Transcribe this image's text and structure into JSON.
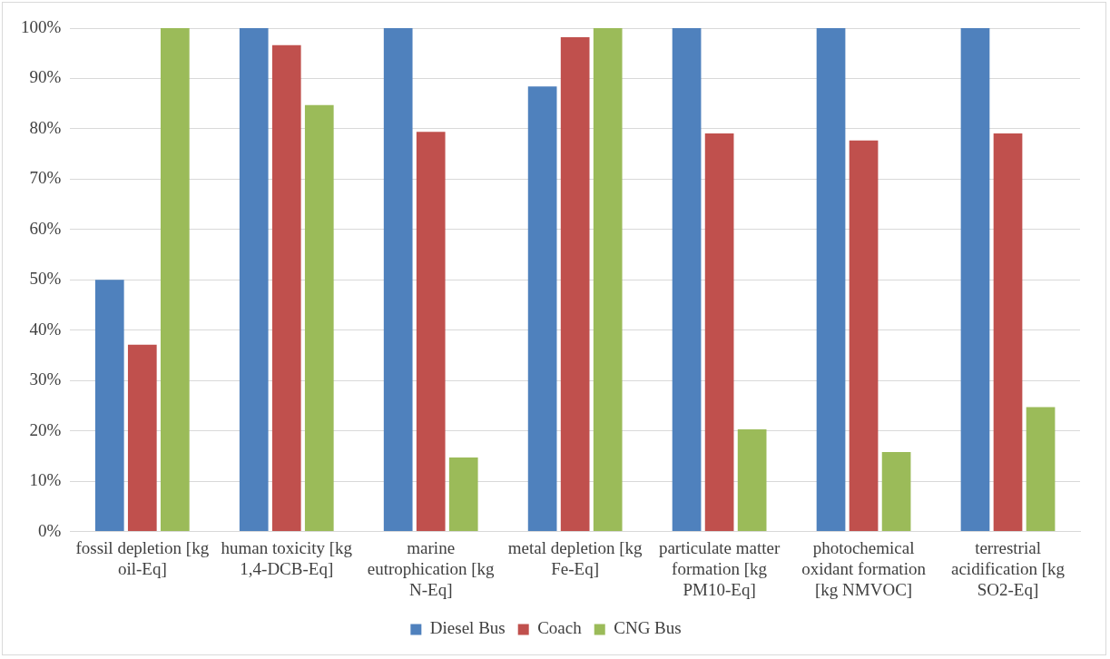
{
  "chart_data": {
    "type": "bar",
    "categories": [
      "fossil depletion [kg oil-Eq]",
      "human toxicity [kg 1,4-DCB-Eq]",
      "marine eutrophication [kg N-Eq]",
      "metal depletion [kg Fe-Eq]",
      "particulate matter formation [kg PM10-Eq]",
      "photochemical oxidant formation [kg NMVOC]",
      "terrestrial acidification [kg SO2-Eq]"
    ],
    "series": [
      {
        "name": "Diesel Bus",
        "color": "#4f81bd",
        "values": [
          50,
          100,
          100,
          88.4,
          100,
          100,
          100
        ]
      },
      {
        "name": "Coach",
        "color": "#c0504d",
        "values": [
          37.1,
          96.6,
          79.4,
          98.2,
          79.1,
          77.7,
          79.1
        ]
      },
      {
        "name": "CNG Bus",
        "color": "#9bbb59",
        "values": [
          100,
          84.7,
          14.7,
          100,
          20.3,
          15.8,
          24.7
        ]
      }
    ],
    "ylim": [
      0,
      100
    ],
    "yticks": [
      {
        "value": 0,
        "label": "0%"
      },
      {
        "value": 10,
        "label": "10%"
      },
      {
        "value": 20,
        "label": "20%"
      },
      {
        "value": 30,
        "label": "30%"
      },
      {
        "value": 40,
        "label": "40%"
      },
      {
        "value": 50,
        "label": "50%"
      },
      {
        "value": 60,
        "label": "60%"
      },
      {
        "value": 70,
        "label": "70%"
      },
      {
        "value": 80,
        "label": "80%"
      },
      {
        "value": 90,
        "label": "90%"
      },
      {
        "value": 100,
        "label": "100%"
      }
    ],
    "grid": "y",
    "legend": "bottom"
  }
}
